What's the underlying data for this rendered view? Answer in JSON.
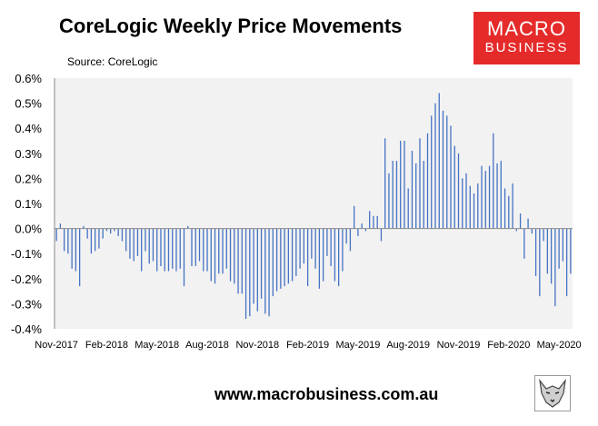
{
  "header": {
    "title": "CoreLogic Weekly Price Movements",
    "source": "Source: CoreLogic"
  },
  "logo": {
    "line1": "MACRO",
    "line2": "BUSINESS"
  },
  "footer": {
    "url": "www.macrobusiness.com.au"
  },
  "colors": {
    "bar": "#4472c4",
    "plot_bg": "#f2f2f2",
    "logo_bg": "#e52a2a"
  },
  "icons": {
    "logo_image": "wolf-icon"
  },
  "chart_data": {
    "type": "bar",
    "title": "CoreLogic Weekly Price Movements",
    "xlabel": "",
    "ylabel": "",
    "ylim": [
      -0.4,
      0.6
    ],
    "grid": false,
    "legend": "none",
    "y_ticks": [
      {
        "value": 0.6,
        "label": "0.6%"
      },
      {
        "value": 0.5,
        "label": "0.5%"
      },
      {
        "value": 0.4,
        "label": "0.4%"
      },
      {
        "value": 0.3,
        "label": "0.3%"
      },
      {
        "value": 0.2,
        "label": "0.2%"
      },
      {
        "value": 0.1,
        "label": "0.1%"
      },
      {
        "value": 0.0,
        "label": "0.0%"
      },
      {
        "value": -0.1,
        "label": "-0.1%"
      },
      {
        "value": -0.2,
        "label": "-0.2%"
      },
      {
        "value": -0.3,
        "label": "-0.3%"
      },
      {
        "value": -0.4,
        "label": "-0.4%"
      }
    ],
    "x_ticks": [
      {
        "index": 0,
        "label": "Nov-2017"
      },
      {
        "index": 13,
        "label": "Feb-2018"
      },
      {
        "index": 26,
        "label": "May-2018"
      },
      {
        "index": 39,
        "label": "Aug-2018"
      },
      {
        "index": 52,
        "label": "Nov-2018"
      },
      {
        "index": 65,
        "label": "Feb-2019"
      },
      {
        "index": 78,
        "label": "May-2019"
      },
      {
        "index": 91,
        "label": "Aug-2019"
      },
      {
        "index": 104,
        "label": "Nov-2019"
      },
      {
        "index": 117,
        "label": "Feb-2020"
      },
      {
        "index": 130,
        "label": "May-2020"
      }
    ],
    "values": [
      -0.05,
      0.02,
      -0.09,
      -0.1,
      -0.16,
      -0.17,
      -0.23,
      0.01,
      -0.04,
      -0.1,
      -0.09,
      -0.08,
      -0.04,
      -0.01,
      -0.02,
      -0.01,
      -0.03,
      -0.05,
      -0.09,
      -0.12,
      -0.13,
      -0.11,
      -0.17,
      -0.09,
      -0.14,
      -0.13,
      -0.17,
      -0.15,
      -0.17,
      -0.17,
      -0.16,
      -0.17,
      -0.16,
      -0.23,
      0.01,
      -0.15,
      -0.15,
      -0.13,
      -0.17,
      -0.17,
      -0.21,
      -0.22,
      -0.18,
      -0.18,
      -0.16,
      -0.21,
      -0.22,
      -0.26,
      -0.26,
      -0.36,
      -0.35,
      -0.3,
      -0.33,
      -0.28,
      -0.34,
      -0.35,
      -0.27,
      -0.25,
      -0.24,
      -0.23,
      -0.22,
      -0.21,
      -0.19,
      -0.16,
      -0.14,
      -0.23,
      -0.12,
      -0.16,
      -0.24,
      -0.21,
      -0.11,
      -0.15,
      -0.21,
      -0.23,
      -0.17,
      -0.06,
      -0.09,
      0.09,
      -0.03,
      0.02,
      -0.01,
      0.07,
      0.05,
      0.05,
      -0.05,
      0.36,
      0.22,
      0.27,
      0.27,
      0.35,
      0.35,
      0.16,
      0.31,
      0.26,
      0.36,
      0.27,
      0.38,
      0.45,
      0.5,
      0.54,
      0.47,
      0.45,
      0.41,
      0.33,
      0.3,
      0.2,
      0.22,
      0.17,
      0.14,
      0.18,
      0.25,
      0.23,
      0.25,
      0.38,
      0.26,
      0.27,
      0.16,
      0.13,
      0.18,
      -0.01,
      0.06,
      -0.12,
      0.04,
      -0.02,
      -0.19,
      -0.27,
      -0.05,
      -0.18,
      -0.22,
      -0.31,
      -0.16,
      -0.13,
      -0.27,
      -0.18
    ]
  }
}
